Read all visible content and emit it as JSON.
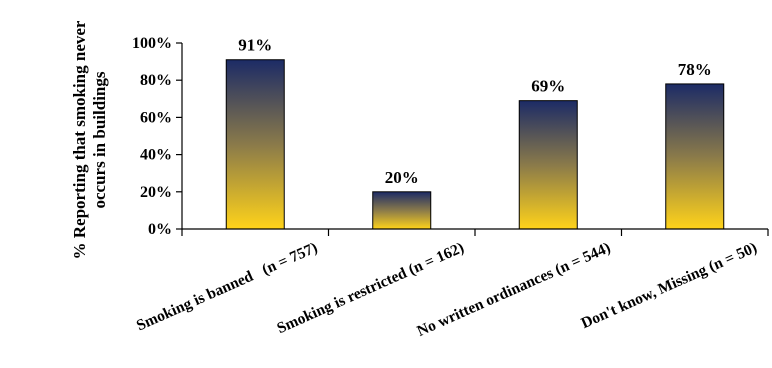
{
  "chart_data": {
    "type": "bar",
    "categories": [
      "Smoking is banned   (n = 757)",
      "Smoking is restricted (n = 162)",
      "No written ordinances (n = 544)",
      "Don't know, Missing (n = 50)"
    ],
    "values": [
      91,
      20,
      69,
      78
    ],
    "data_labels": [
      "91%",
      "20%",
      "69%",
      "78%"
    ],
    "title": "",
    "xlabel": "",
    "ylabel": [
      "% Reporting that smoking never",
      "occurs in buildings"
    ],
    "ylim": [
      0,
      100
    ],
    "yticks": [
      0,
      20,
      40,
      60,
      80,
      100
    ],
    "ytick_labels": [
      "0%",
      "20%",
      "40%",
      "60%",
      "80%",
      "100%"
    ],
    "grid": false,
    "legend": "none",
    "colors": {
      "bar_top": "#1c2b66",
      "bar_mid": "#8a7a4a",
      "bar_bottom": "#ffd31a",
      "bar_outline": "#000000",
      "axis": "#000000"
    }
  }
}
